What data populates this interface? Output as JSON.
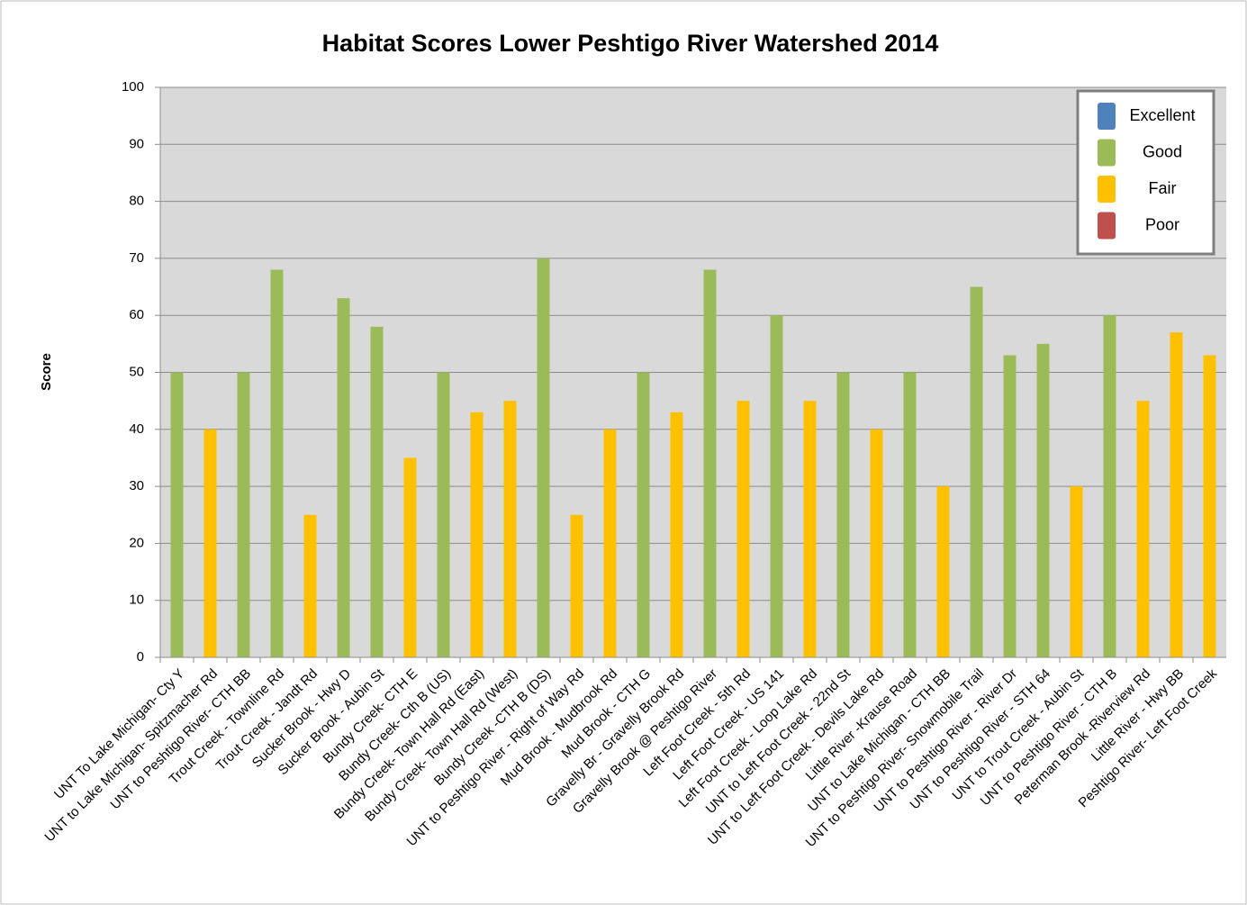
{
  "chart_data": {
    "type": "bar",
    "title": "Habitat Scores Lower Peshtigo River Watershed 2014",
    "y_label": "Score",
    "categories": [
      "UNT To Lake Michigan- Cty Y",
      "UNT to Lake Michigan- Spitzmacher Rd",
      "UNT to Peshtigo River- CTH BB",
      "Trout Creek - Townline Rd",
      "Trout Creek - Jandt Rd",
      "Sucker Brook - Hwy D",
      "Sucker Brook - Aubin St",
      "Bundy Creek- CTH E",
      "Bundy Creek- Cth B (US)",
      "Bundy Creek- Town Hall Rd (East)",
      "Bundy Creek- Town Hall Rd (West)",
      "Bundy Creek -CTH B (DS)",
      "UNT to Peshtigo River - Right of Way Rd",
      "Mud Brook - Mudbrook Rd",
      "Mud Brook - CTH G",
      "Gravelly Br - Gravelly Brook Rd",
      "Gravelly Brook @ Peshtigo River",
      "Left Foot Creek - 5th Rd",
      "Left Foot Creek - US 141",
      "Left Foot Creek - Loop Lake Rd",
      "UNT to Left Foot Creek - 22nd St",
      "UNT to Left Foot Creek - Devils Lake Rd",
      "Little River -Krause Road",
      "UNT to Lake Michigan - CTH BB",
      "UNT to Peshtigo River- Snowmobile Trail",
      "UNT to Peshtigo River - River Dr",
      "UNT to Peshtigo River - STH 64",
      "UNT to Trout Creek - Aubin St",
      "UNT to Peshtigo River - CTH B",
      "Peterman Brook -Riverview Rd",
      "Little River - Hwy BB",
      "Peshtigo River- Left Foot Creek"
    ],
    "series": [
      {
        "name": "Excellent",
        "color": "#4f81bd",
        "values": [
          null,
          null,
          null,
          null,
          null,
          null,
          null,
          null,
          null,
          null,
          null,
          null,
          null,
          null,
          null,
          null,
          null,
          null,
          null,
          null,
          null,
          null,
          null,
          null,
          null,
          null,
          null,
          null,
          null,
          null,
          null,
          null
        ]
      },
      {
        "name": "Good",
        "color": "#9bbb59",
        "values": [
          50,
          null,
          50,
          68,
          null,
          63,
          58,
          null,
          50,
          null,
          null,
          70,
          null,
          null,
          50,
          null,
          68,
          null,
          60,
          null,
          50,
          null,
          50,
          null,
          65,
          53,
          55,
          null,
          60,
          null,
          null,
          null
        ]
      },
      {
        "name": "Fair",
        "color": "#ffc000",
        "values": [
          null,
          40,
          null,
          null,
          25,
          null,
          null,
          35,
          null,
          43,
          45,
          null,
          25,
          40,
          null,
          43,
          null,
          45,
          null,
          45,
          null,
          40,
          null,
          30,
          null,
          null,
          null,
          30,
          null,
          45,
          57,
          53
        ]
      },
      {
        "name": "Poor",
        "color": "#c0504d",
        "values": [
          null,
          null,
          null,
          null,
          null,
          null,
          null,
          null,
          null,
          null,
          null,
          null,
          null,
          null,
          null,
          null,
          null,
          null,
          null,
          null,
          null,
          null,
          null,
          null,
          null,
          null,
          null,
          null,
          null,
          null,
          null,
          null
        ]
      }
    ],
    "ylim": [
      0,
      100
    ],
    "yticks": [
      0,
      10,
      20,
      30,
      40,
      50,
      60,
      70,
      80,
      90,
      100
    ],
    "grid": true,
    "legend": "upper right"
  }
}
